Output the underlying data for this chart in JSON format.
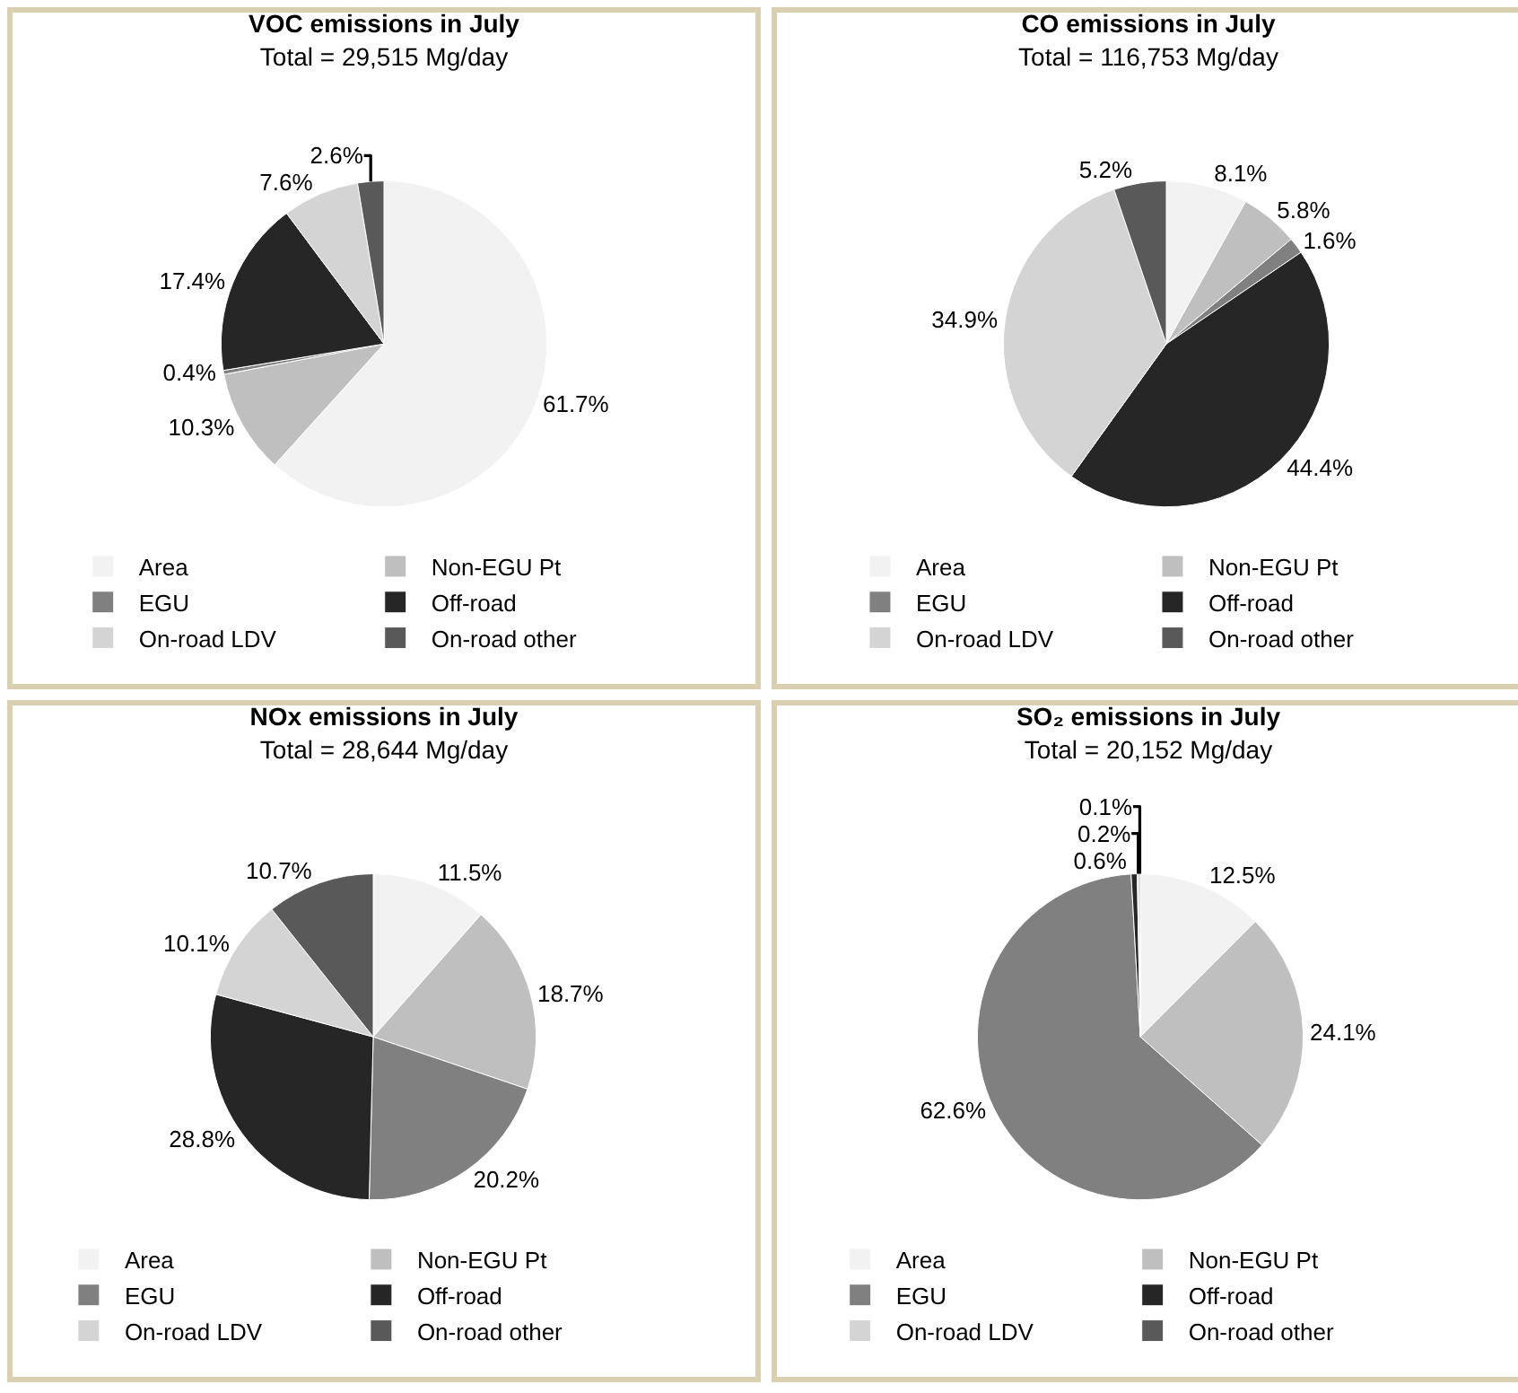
{
  "chart_data": [
    {
      "type": "pie",
      "title": "VOC emissions in July",
      "subtitle": "Total = 29,515 Mg/day",
      "categories": [
        "Area",
        "Non-EGU Pt",
        "EGU",
        "Off-road",
        "On-road LDV",
        "On-road other"
      ],
      "values": [
        61.7,
        10.3,
        0.4,
        17.4,
        7.6,
        2.6
      ],
      "value_labels": [
        "61.7%",
        "10.3%",
        "0.4%",
        "17.4%",
        "7.6%",
        "2.6%"
      ],
      "colors": [
        "#f2f2f2",
        "#bfbfbf",
        "#808080",
        "#262626",
        "#d4d4d4",
        "#595959"
      ],
      "legend": "bottom"
    },
    {
      "type": "pie",
      "title": "CO emissions in July",
      "subtitle": "Total = 116,753 Mg/day",
      "categories": [
        "Area",
        "Non-EGU Pt",
        "EGU",
        "Off-road",
        "On-road LDV",
        "On-road other"
      ],
      "values": [
        8.1,
        5.8,
        1.6,
        44.4,
        34.9,
        5.2
      ],
      "value_labels": [
        "8.1%",
        "5.8%",
        "1.6%",
        "44.4%",
        "34.9%",
        "5.2%"
      ],
      "colors": [
        "#f2f2f2",
        "#bfbfbf",
        "#808080",
        "#262626",
        "#d4d4d4",
        "#595959"
      ],
      "legend": "bottom"
    },
    {
      "type": "pie",
      "title": "NOx emissions in July",
      "subtitle": "Total = 28,644 Mg/day",
      "categories": [
        "Area",
        "Non-EGU Pt",
        "EGU",
        "Off-road",
        "On-road LDV",
        "On-road other"
      ],
      "values": [
        11.5,
        18.7,
        20.2,
        28.8,
        10.1,
        10.7
      ],
      "value_labels": [
        "11.5%",
        "18.7%",
        "20.2%",
        "28.8%",
        "10.1%",
        "10.7%"
      ],
      "colors": [
        "#f2f2f2",
        "#bfbfbf",
        "#808080",
        "#262626",
        "#d4d4d4",
        "#595959"
      ],
      "legend": "bottom"
    },
    {
      "type": "pie",
      "title": "SO₂ emissions in July",
      "subtitle": "Total = 20,152 Mg/day",
      "categories": [
        "Area",
        "Non-EGU Pt",
        "EGU",
        "Off-road",
        "On-road LDV",
        "On-road other"
      ],
      "values": [
        12.5,
        24.1,
        62.6,
        0.6,
        0.2,
        0.1
      ],
      "value_labels": [
        "12.5%",
        "24.1%",
        "62.6%",
        "0.6%",
        "0.2%",
        "0.1%"
      ],
      "colors": [
        "#f2f2f2",
        "#bfbfbf",
        "#808080",
        "#262626",
        "#d4d4d4",
        "#595959"
      ],
      "legend": "bottom"
    }
  ]
}
